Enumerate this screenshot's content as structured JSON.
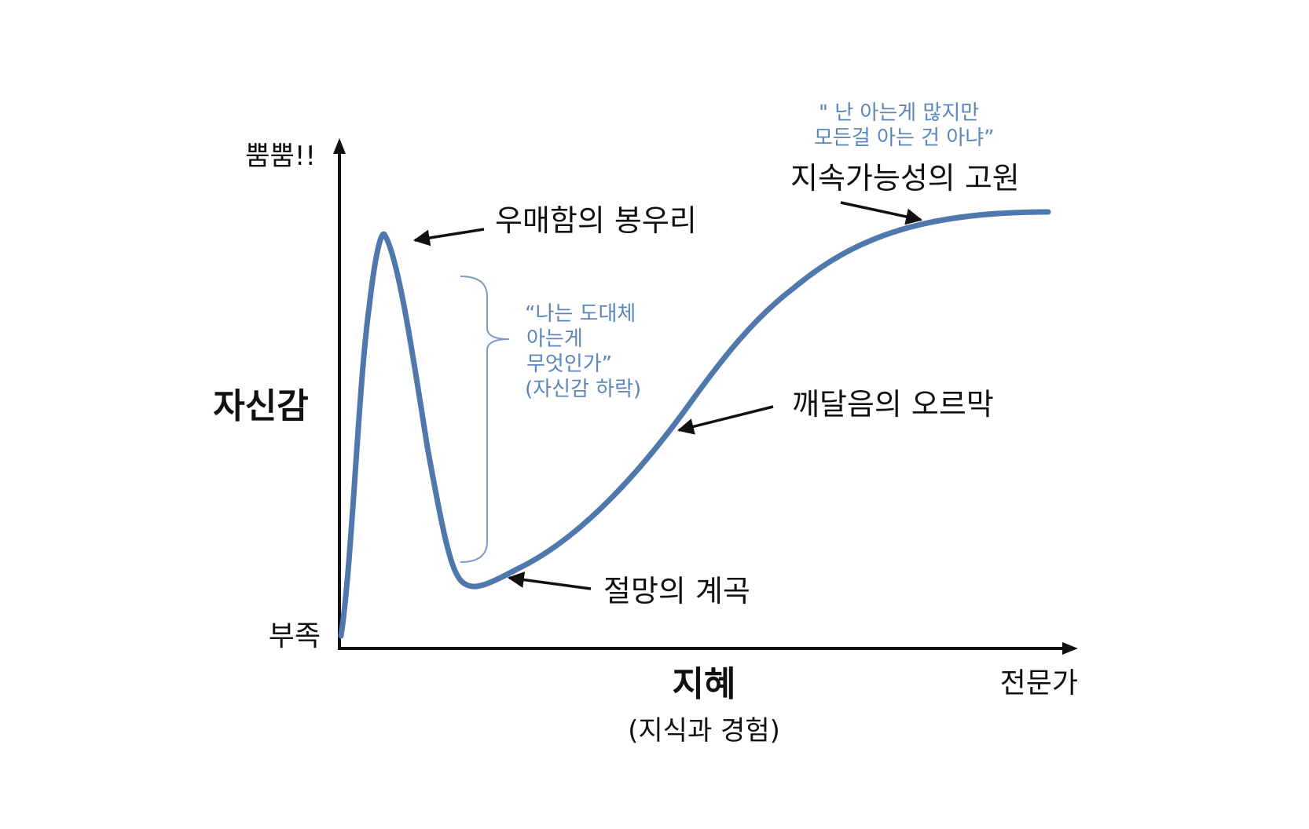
{
  "colors": {
    "curve": "#4f78ad",
    "axis": "#111111",
    "annotation_blue": "#5b86bb",
    "bracket": "#7d9cc4",
    "text": "#111111"
  },
  "axes": {
    "y_top": "뿜뿜!!",
    "y_title": "자신감",
    "y_bottom": "부족",
    "x_title": "지혜",
    "x_subtitle": "(지식과 경험)",
    "x_right": "전문가"
  },
  "labels": {
    "peak": "우매함의 봉우리",
    "valley": "절망의 계곡",
    "slope": "깨달음의 오르막",
    "plateau": "지속가능성의 고원"
  },
  "notes": {
    "decline": [
      "“나는 도대체",
      "아는게",
      "무엇인가”",
      "(자신감 하락)"
    ],
    "plateau": [
      "\" 난 아는게 많지만",
      "모든걸 아는 건 아냐”"
    ]
  }
}
